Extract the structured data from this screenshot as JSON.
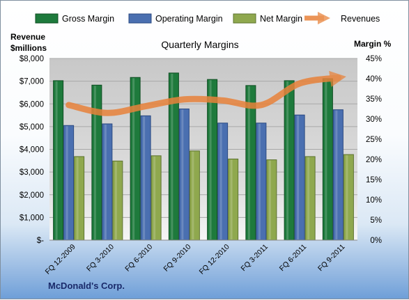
{
  "chart_data": {
    "type": "bar",
    "title": "Quarterly Margins",
    "footer": "McDonald's Corp.",
    "categories": [
      "FQ 12-2009",
      "FQ 3-2010",
      "FQ 6-2010",
      "FQ 9-2010",
      "FQ 12-2010",
      "FQ 3-2011",
      "FQ 6-2011",
      "FQ 9-2011"
    ],
    "y_left": {
      "label_line1": "Revenue",
      "label_line2": "$millions",
      "ylim": [
        0,
        8000
      ],
      "ticks": [
        "$-",
        "$1,000",
        "$2,000",
        "$3,000",
        "$4,000",
        "$5,000",
        "$6,000",
        "$7,000",
        "$8,000"
      ]
    },
    "y_right": {
      "label": "Margin %",
      "ylim": [
        0,
        45
      ],
      "ticks": [
        "0%",
        "5%",
        "10%",
        "15%",
        "20%",
        "25%",
        "30%",
        "35%",
        "40%",
        "45%"
      ]
    },
    "series": [
      {
        "name": "Gross Margin",
        "axis": "right",
        "color": "#1e7a3c",
        "values": [
          39.5,
          38.4,
          40.3,
          41.4,
          39.8,
          38.3,
          39.5,
          40.0
        ]
      },
      {
        "name": "Operating Margin",
        "axis": "right",
        "color": "#4a6fb0",
        "values": [
          28.4,
          28.8,
          30.8,
          32.5,
          29.0,
          29.0,
          31.0,
          32.3
        ]
      },
      {
        "name": "Net Margin",
        "axis": "right",
        "color": "#8fa84e",
        "values": [
          20.7,
          19.6,
          20.9,
          22.1,
          20.1,
          19.9,
          20.7,
          21.2
        ]
      },
      {
        "name": "Revenues",
        "axis": "left",
        "type": "line",
        "color": "#e8823a",
        "values": [
          5950,
          5600,
          5900,
          6200,
          6150,
          5950,
          6900,
          7150
        ]
      }
    ],
    "grid": true,
    "legend": "top"
  }
}
